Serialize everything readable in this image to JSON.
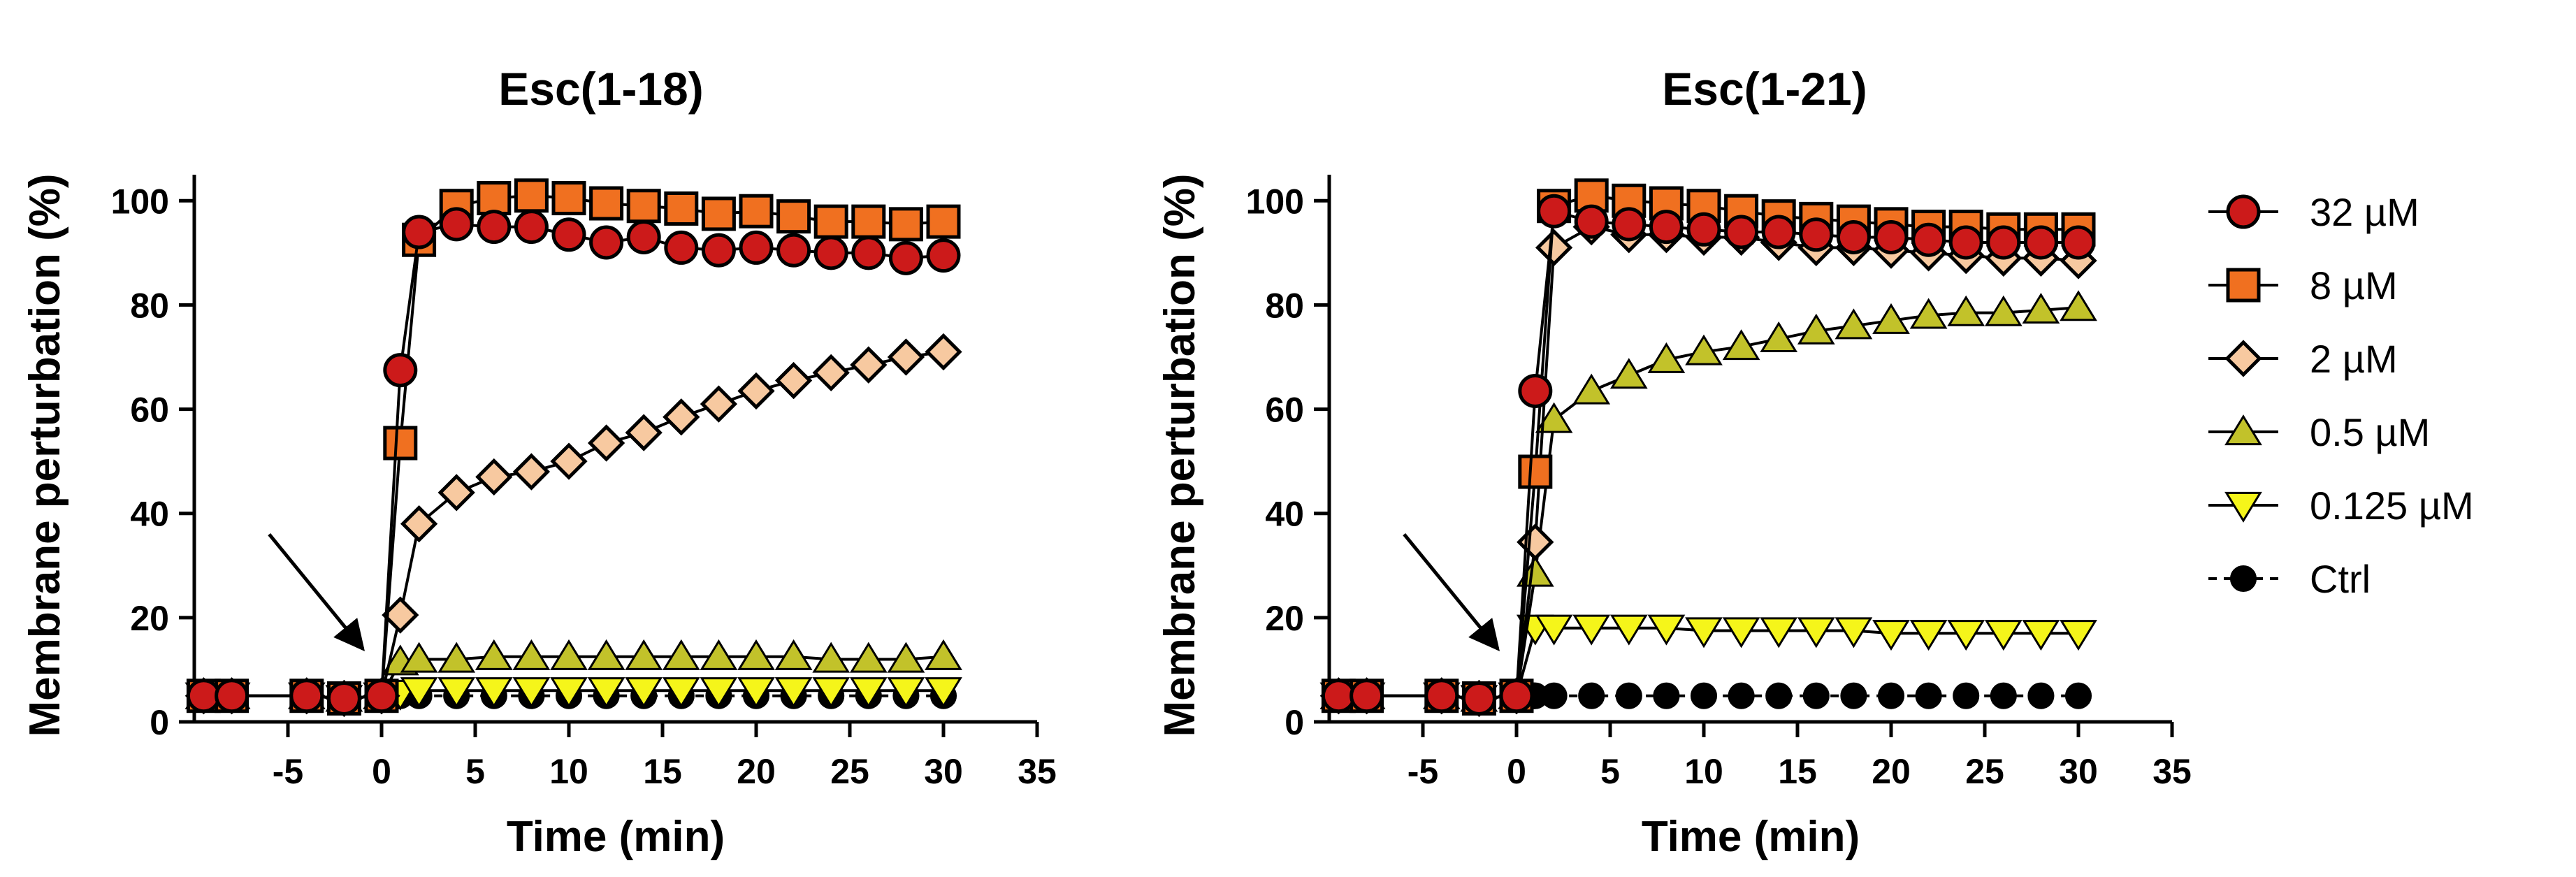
{
  "chart_data": [
    {
      "type": "line",
      "title": "Esc(1-18)",
      "xlabel": "Time (min)",
      "ylabel": "Membrane perturbation (%)",
      "xlim": [
        -10,
        35
      ],
      "ylim": [
        0,
        105
      ],
      "xticks": [
        -5,
        0,
        5,
        10,
        15,
        20,
        25,
        30,
        35
      ],
      "xtick_labels": [
        "-5",
        "0",
        "5",
        "10",
        "15",
        "20",
        "25",
        "30",
        "35"
      ],
      "yticks": [
        0,
        20,
        40,
        60,
        80,
        100
      ],
      "ytick_labels": [
        "0",
        "20",
        "40",
        "60",
        "80",
        "100"
      ],
      "annotation": {
        "type": "arrow",
        "from": [
          -6,
          36
        ],
        "to": [
          -1,
          14
        ]
      },
      "series": [
        {
          "name": "32 µM",
          "marker": "circle",
          "color": "#cc1a1a",
          "line": "solid",
          "x": [
            -9.5,
            -8,
            -4,
            -2,
            0,
            1,
            2,
            4,
            6,
            8,
            10,
            12,
            14,
            16,
            18,
            20,
            22,
            24,
            26,
            28,
            30
          ],
          "y": [
            5,
            5,
            5,
            4.5,
            5,
            67.5,
            94,
            95.5,
            95,
            95,
            93.5,
            92,
            93,
            91,
            90.5,
            91,
            90.5,
            90,
            90,
            89,
            89.5
          ]
        },
        {
          "name": "8 µM",
          "marker": "square",
          "color": "#f07020",
          "line": "solid",
          "x": [
            -9.5,
            -8,
            -4,
            -2,
            0,
            1,
            2,
            4,
            6,
            8,
            10,
            12,
            14,
            16,
            18,
            20,
            22,
            24,
            26,
            28,
            30
          ],
          "y": [
            5,
            5,
            5,
            4.5,
            5,
            53.5,
            92.5,
            99,
            100.5,
            101,
            100.5,
            99.5,
            99,
            98.5,
            97.5,
            98,
            97,
            96,
            96,
            95.5,
            96
          ]
        },
        {
          "name": "2 µM",
          "marker": "diamond",
          "color": "#f7c9a0",
          "line": "solid",
          "x": [
            -9.5,
            -8,
            -4,
            -2,
            0,
            1,
            2,
            4,
            6,
            8,
            10,
            12,
            14,
            16,
            18,
            20,
            22,
            24,
            26,
            28,
            30
          ],
          "y": [
            5,
            5,
            5,
            4.5,
            5,
            20.5,
            38,
            44,
            47,
            48,
            50,
            53.5,
            55.5,
            58.5,
            61,
            63.5,
            65.5,
            67,
            68.5,
            70,
            71
          ]
        },
        {
          "name": "0.5 µM",
          "marker": "triangle-up",
          "color": "#c2c22a",
          "line": "solid",
          "x": [
            -9.5,
            -8,
            -4,
            -2,
            0,
            1,
            2,
            4,
            6,
            8,
            10,
            12,
            14,
            16,
            18,
            20,
            22,
            24,
            26,
            28,
            30
          ],
          "y": [
            5,
            5,
            5,
            4.5,
            5,
            11.5,
            12,
            12,
            12.5,
            12.5,
            12.5,
            12.5,
            12.5,
            12.5,
            12.5,
            12.5,
            12.5,
            12,
            12,
            12,
            12.5
          ]
        },
        {
          "name": "0.125 µM",
          "marker": "triangle-down",
          "color": "#f5f51a",
          "line": "solid",
          "x": [
            -9.5,
            -8,
            -4,
            -2,
            0,
            1,
            2,
            4,
            6,
            8,
            10,
            12,
            14,
            16,
            18,
            20,
            22,
            24,
            26,
            28,
            30
          ],
          "y": [
            5,
            5,
            5,
            4.5,
            5,
            5.5,
            6,
            6,
            6,
            6,
            6,
            6,
            6,
            6,
            6,
            6,
            6,
            6,
            6,
            6,
            6
          ]
        },
        {
          "name": "Ctrl",
          "marker": "dot",
          "color": "#000000",
          "line": "dashed",
          "x": [
            -9.5,
            -8,
            -4,
            -2,
            0,
            1,
            2,
            4,
            6,
            8,
            10,
            12,
            14,
            16,
            18,
            20,
            22,
            24,
            26,
            28,
            30
          ],
          "y": [
            5,
            5,
            5,
            4.5,
            5,
            5,
            5,
            5,
            5,
            5,
            5,
            5,
            5,
            5,
            5,
            5,
            5,
            5,
            5,
            5,
            5
          ]
        }
      ]
    },
    {
      "type": "line",
      "title": "Esc(1-21)",
      "xlabel": "Time (min)",
      "ylabel": "Membrane perturbation (%)",
      "xlim": [
        -10,
        35
      ],
      "ylim": [
        0,
        105
      ],
      "xticks": [
        -5,
        0,
        5,
        10,
        15,
        20,
        25,
        30,
        35
      ],
      "xtick_labels": [
        "-5",
        "0",
        "5",
        "10",
        "15",
        "20",
        "25",
        "30",
        "35"
      ],
      "yticks": [
        0,
        20,
        40,
        60,
        80,
        100
      ],
      "ytick_labels": [
        "0",
        "20",
        "40",
        "60",
        "80",
        "100"
      ],
      "annotation": {
        "type": "arrow",
        "from": [
          -6,
          36
        ],
        "to": [
          -1,
          14
        ]
      },
      "series": [
        {
          "name": "32 µM",
          "marker": "circle",
          "color": "#cc1a1a",
          "line": "solid",
          "x": [
            -9.5,
            -8,
            -4,
            -2,
            0,
            1,
            2,
            4,
            6,
            8,
            10,
            12,
            14,
            16,
            18,
            20,
            22,
            24,
            26,
            28,
            30
          ],
          "y": [
            5,
            5,
            5,
            4.5,
            5,
            63.5,
            98,
            96,
            95.5,
            95,
            94.5,
            94,
            94,
            93.5,
            93,
            93,
            92.5,
            92,
            92,
            92,
            92
          ]
        },
        {
          "name": "8 µM",
          "marker": "square",
          "color": "#f07020",
          "line": "solid",
          "x": [
            -9.5,
            -8,
            -4,
            -2,
            0,
            1,
            2,
            4,
            6,
            8,
            10,
            12,
            14,
            16,
            18,
            20,
            22,
            24,
            26,
            28,
            30
          ],
          "y": [
            5,
            5,
            5,
            4.5,
            5,
            48,
            99,
            101,
            100,
            99.5,
            99,
            98,
            97,
            96.5,
            96,
            95.5,
            95,
            95,
            94.5,
            94.5,
            94.5
          ]
        },
        {
          "name": "2 µM",
          "marker": "diamond",
          "color": "#f7c9a0",
          "line": "solid",
          "x": [
            -9.5,
            -8,
            -4,
            -2,
            0,
            1,
            2,
            4,
            6,
            8,
            10,
            12,
            14,
            16,
            18,
            20,
            22,
            24,
            26,
            28,
            30
          ],
          "y": [
            5,
            5,
            5,
            4.5,
            5,
            34.5,
            91,
            95,
            93.5,
            93.5,
            93,
            93,
            92,
            91,
            91,
            90.5,
            90,
            89.5,
            89,
            89,
            88.5
          ]
        },
        {
          "name": "0.5 µM",
          "marker": "triangle-up",
          "color": "#c2c22a",
          "line": "solid",
          "x": [
            -9.5,
            -8,
            -4,
            -2,
            0,
            1,
            2,
            4,
            6,
            8,
            10,
            12,
            14,
            16,
            18,
            20,
            22,
            24,
            26,
            28,
            30
          ],
          "y": [
            5,
            5,
            5,
            4.5,
            5,
            28.5,
            58,
            63.5,
            66.5,
            69.5,
            71,
            72,
            73.5,
            75,
            76,
            77,
            78,
            78.5,
            78.5,
            79,
            79.5
          ]
        },
        {
          "name": "0.125 µM",
          "marker": "triangle-down",
          "color": "#f5f51a",
          "line": "solid",
          "x": [
            -9.5,
            -8,
            -4,
            -2,
            0,
            1,
            2,
            4,
            6,
            8,
            10,
            12,
            14,
            16,
            18,
            20,
            22,
            24,
            26,
            28,
            30
          ],
          "y": [
            5,
            5,
            5,
            4.5,
            5,
            18,
            18,
            18,
            18,
            18,
            17.5,
            17.5,
            17.5,
            17.5,
            17.5,
            17,
            17,
            17,
            17,
            17,
            17
          ]
        },
        {
          "name": "Ctrl",
          "marker": "dot",
          "color": "#000000",
          "line": "dashed",
          "x": [
            -9.5,
            -8,
            -4,
            -2,
            0,
            1,
            2,
            4,
            6,
            8,
            10,
            12,
            14,
            16,
            18,
            20,
            22,
            24,
            26,
            28,
            30
          ],
          "y": [
            5,
            5,
            5,
            4.5,
            5,
            5,
            5,
            5,
            5,
            5,
            5,
            5,
            5,
            5,
            5,
            5,
            5,
            5,
            5,
            5,
            5
          ]
        }
      ]
    }
  ],
  "legend": {
    "position": "right",
    "items": [
      {
        "label": "32 µM",
        "marker": "circle",
        "color": "#cc1a1a",
        "line": "solid"
      },
      {
        "label": "8 µM",
        "marker": "square",
        "color": "#f07020",
        "line": "solid"
      },
      {
        "label": "2 µM",
        "marker": "diamond",
        "color": "#f7c9a0",
        "line": "solid"
      },
      {
        "label": "0.5 µM",
        "marker": "triangle-up",
        "color": "#c2c22a",
        "line": "solid"
      },
      {
        "label": "0.125 µM",
        "marker": "triangle-down",
        "color": "#f5f51a",
        "line": "solid"
      },
      {
        "label": "Ctrl",
        "marker": "dot",
        "color": "#000000",
        "line": "dashed"
      }
    ]
  }
}
